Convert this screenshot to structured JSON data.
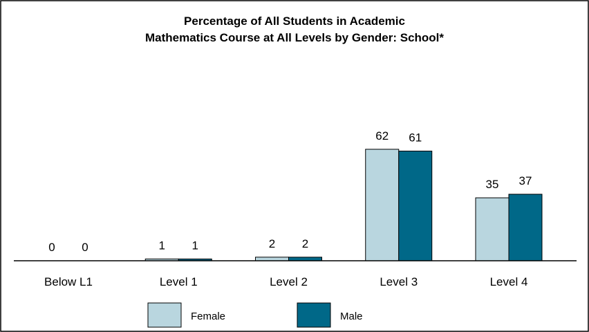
{
  "chart_data": {
    "type": "bar",
    "title_lines": [
      "Percentage of All Students in Academic",
      "Mathematics Course at All Levels by Gender: School*"
    ],
    "categories": [
      "Below L1",
      "Level 1",
      "Level 2",
      "Level 3",
      "Level 4"
    ],
    "series": [
      {
        "name": "Female",
        "values": [
          0,
          1,
          2,
          62,
          35
        ],
        "color": "#b9d6df"
      },
      {
        "name": "Male",
        "values": [
          0,
          1,
          2,
          61,
          37
        ],
        "color": "#006888"
      }
    ],
    "xlabel": "",
    "ylabel": "",
    "ylim": [
      0,
      100
    ],
    "grid": false,
    "legend_position": "bottom"
  },
  "colors": {
    "frame": "#000000",
    "background": "#ffffff",
    "bar_outline": "#000000"
  }
}
